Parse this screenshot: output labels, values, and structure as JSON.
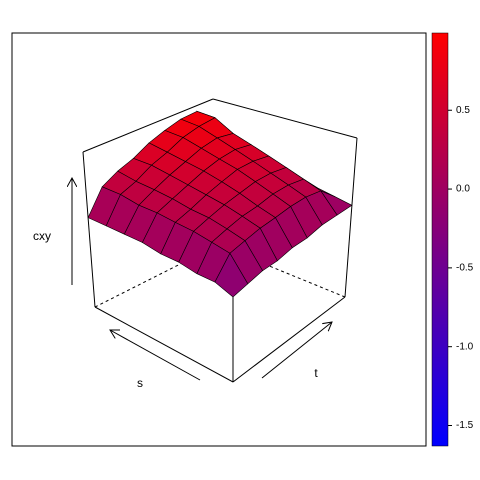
{
  "chart_data": {
    "type": "surface",
    "xlabel": "s",
    "ylabel": "t",
    "zlabel": "cxy",
    "zlim": [
      -1.6,
      1.0
    ],
    "z": [
      [
        -0.3,
        -0.25,
        -0.2,
        -0.2,
        -0.15,
        -0.15,
        -0.1,
        -0.1,
        -0.1
      ],
      [
        -0.2,
        0.1,
        0.15,
        0.2,
        0.22,
        0.25,
        0.25,
        0.2,
        -0.05
      ],
      [
        -0.2,
        0.15,
        0.22,
        0.28,
        0.3,
        0.35,
        0.35,
        0.3,
        0.0
      ],
      [
        -0.15,
        0.2,
        0.28,
        0.35,
        0.4,
        0.45,
        0.45,
        0.4,
        0.05
      ],
      [
        -0.15,
        0.22,
        0.3,
        0.4,
        0.48,
        0.55,
        0.55,
        0.5,
        0.1
      ],
      [
        -0.1,
        0.25,
        0.35,
        0.45,
        0.55,
        0.62,
        0.65,
        0.6,
        0.15
      ],
      [
        -0.1,
        0.25,
        0.38,
        0.5,
        0.6,
        0.7,
        0.75,
        0.7,
        0.2
      ],
      [
        -0.1,
        0.3,
        0.4,
        0.55,
        0.65,
        0.78,
        0.85,
        0.88,
        0.3
      ],
      [
        -0.1,
        0.3,
        0.45,
        0.55,
        0.7,
        0.8,
        0.88,
        0.9,
        0.4
      ]
    ],
    "colorbar": {
      "lim": [
        -1.63,
        0.99
      ],
      "colors": [
        "#0000ff",
        "#ff0000"
      ],
      "ticks": [
        {
          "value": 0.5,
          "label": "0.5"
        },
        {
          "value": 0.0,
          "label": "0.0"
        },
        {
          "value": -0.5,
          "label": "-0.5"
        },
        {
          "value": -1.0,
          "label": "-1.0"
        },
        {
          "value": -1.5,
          "label": "-1.5"
        }
      ]
    }
  }
}
